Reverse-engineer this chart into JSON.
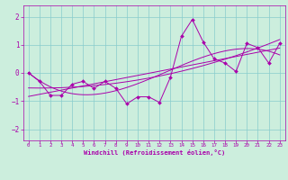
{
  "xlabel": "Windchill (Refroidissement éolien,°C)",
  "background_color": "#cceedd",
  "line_color": "#aa00aa",
  "grid_color": "#88cccc",
  "x_data": [
    0,
    1,
    2,
    3,
    4,
    5,
    6,
    7,
    8,
    9,
    10,
    11,
    12,
    13,
    14,
    15,
    16,
    17,
    18,
    19,
    20,
    21,
    22,
    23
  ],
  "y_data": [
    0.0,
    -0.3,
    -0.8,
    -0.8,
    -0.4,
    -0.3,
    -0.55,
    -0.3,
    -0.55,
    -1.1,
    -0.85,
    -0.85,
    -1.05,
    -0.15,
    1.3,
    1.9,
    1.1,
    0.5,
    0.35,
    0.05,
    1.05,
    0.9,
    0.35,
    1.05
  ],
  "ylim": [
    -2.4,
    2.4
  ],
  "xlim": [
    -0.5,
    23.5
  ],
  "yticks": [
    -2,
    -1,
    0,
    1,
    2
  ],
  "xticks": [
    0,
    1,
    2,
    3,
    4,
    5,
    6,
    7,
    8,
    9,
    10,
    11,
    12,
    13,
    14,
    15,
    16,
    17,
    18,
    19,
    20,
    21,
    22,
    23
  ]
}
